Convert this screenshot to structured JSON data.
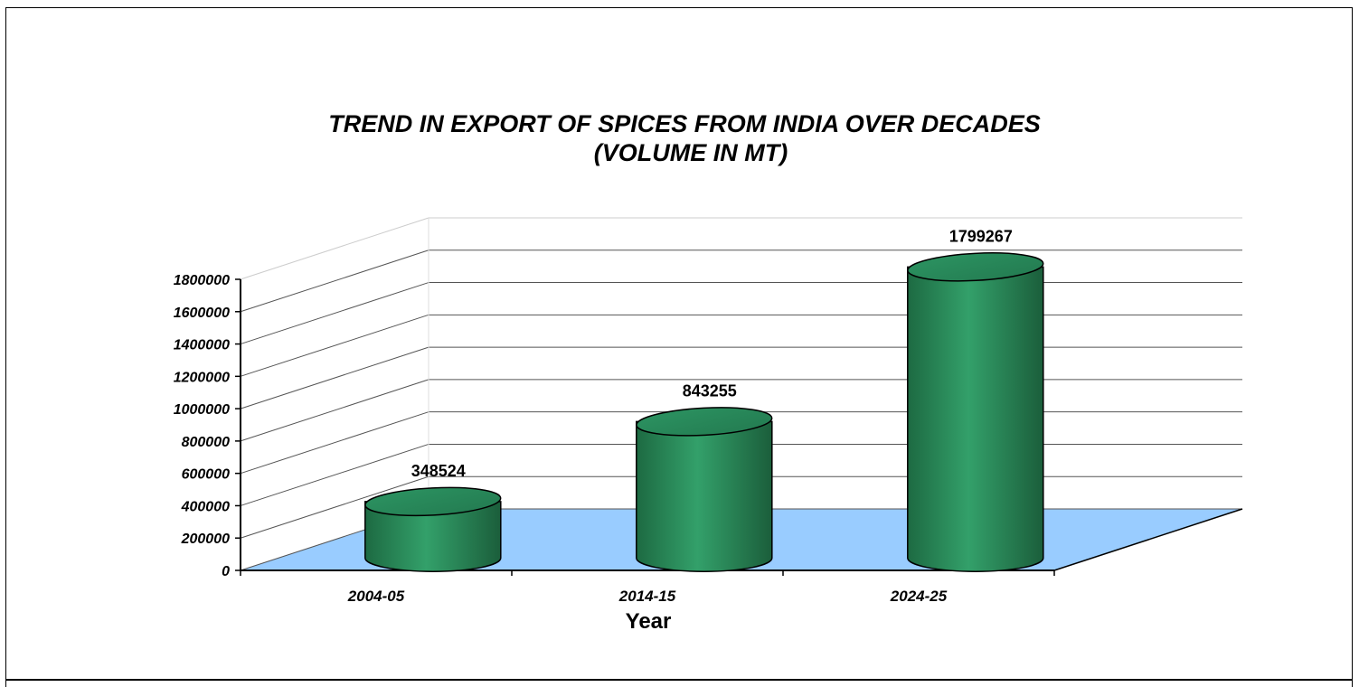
{
  "chart_data": {
    "type": "bar",
    "style": "3d-cylinder",
    "title": "TREND IN EXPORT OF SPICES FROM INDIA OVER DECADES",
    "subtitle": "(VOLUME IN MT)",
    "xlabel": "Year",
    "ylabel": "",
    "categories": [
      "2004-05",
      "2014-15",
      "2024-25"
    ],
    "values": [
      348524,
      843255,
      1799267
    ],
    "data_labels": [
      "348524",
      "843255",
      "1799267"
    ],
    "ylim": [
      0,
      1800000
    ],
    "yticks": [
      0,
      200000,
      400000,
      600000,
      800000,
      1000000,
      1200000,
      1400000,
      1600000,
      1800000
    ],
    "ytick_labels": [
      "0",
      "200000",
      "400000",
      "600000",
      "800000",
      "1000000",
      "1200000",
      "1400000",
      "1600000",
      "1800000"
    ],
    "grid": true,
    "legend": "none",
    "colors": {
      "bar": "#2e8b57",
      "bar_dark": "#1f6b40",
      "floor": "#99ccff",
      "grid": "#000000"
    }
  }
}
